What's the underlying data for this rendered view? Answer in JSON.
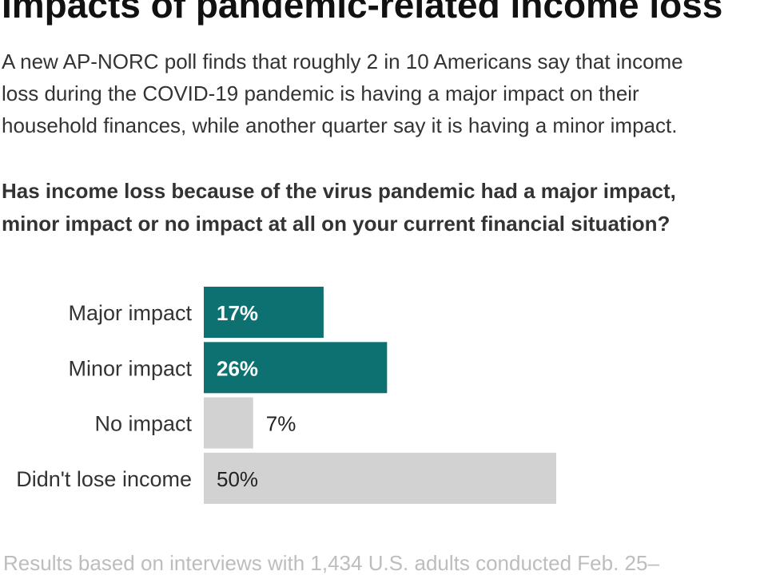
{
  "chart_data": {
    "type": "bar",
    "title": "Impacts of pandemic-related income loss",
    "subtitle": [
      "A new AP-NORC poll finds that roughly 2 in 10 Americans say that income",
      "loss during the COVID-19 pandemic is having a major impact on their",
      "household finances, while another quarter say it is having a minor impact."
    ],
    "question": [
      "Has income loss because of the virus pandemic had a major impact,",
      "minor impact or no impact at all on your current financial situation?"
    ],
    "categories": [
      "Major impact",
      "Minor impact",
      "No impact",
      "Didn't lose income"
    ],
    "values": [
      17,
      26,
      7,
      50
    ],
    "value_labels": [
      "17%",
      "26%",
      "7%",
      "50%"
    ],
    "colors": [
      "#0e7171",
      "#0e7171",
      "#d2d2d2",
      "#d2d2d2"
    ],
    "footnote": "Results based on interviews with 1,434 U.S. adults conducted Feb. 25–"
  }
}
